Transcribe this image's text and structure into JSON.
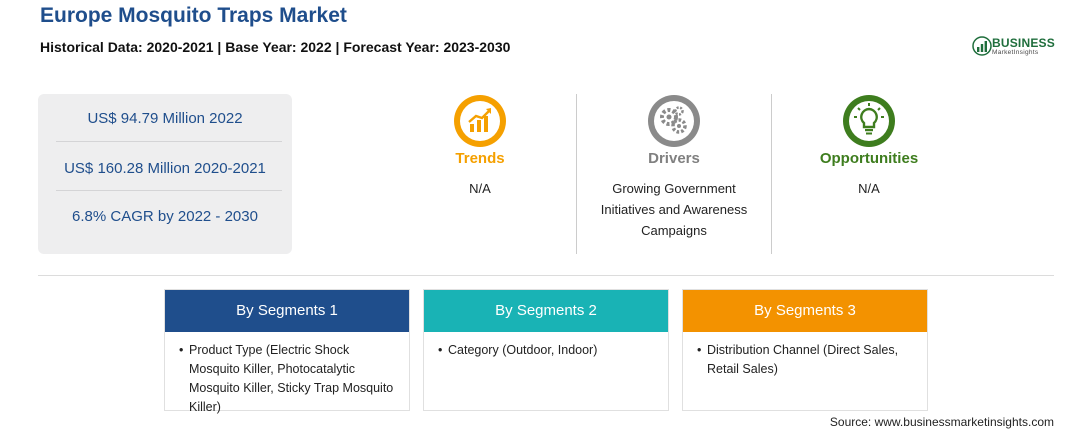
{
  "header": {
    "title": "Europe Mosquito Traps Market",
    "subtitle": "Historical Data: 2020-2021 | Base Year: 2022 | Forecast Year: 2023-2030"
  },
  "logo": {
    "name": "BUSINESS",
    "tagline": "MarketInsights",
    "icon": "bar-chart-logo-icon"
  },
  "stats": [
    "US$ 94.79 Million 2022",
    "US$ 160.28 Million 2020-2021",
    "6.8% CAGR by 2022 - 2030"
  ],
  "factors": {
    "trends": {
      "label": "Trends",
      "text": "N/A",
      "icon": "trend-chart-icon",
      "color": "#f5a000"
    },
    "drivers": {
      "label": "Drivers",
      "text": "Growing Government Initiatives and Awareness Campaigns",
      "icon": "gears-icon",
      "color": "#808080"
    },
    "opportunities": {
      "label": "Opportunities",
      "text": "N/A",
      "icon": "lightbulb-icon",
      "color": "#3e7d1e"
    }
  },
  "segments": [
    {
      "title": "By Segments 1",
      "color": "#1f4e8c",
      "bullet": "•",
      "item": "Product Type (Electric Shock Mosquito Killer, Photocatalytic Mosquito Killer, Sticky Trap Mosquito Killer)"
    },
    {
      "title": "By Segments 2",
      "color": "#19b3b5",
      "bullet": "•",
      "item": "Category (Outdoor, Indoor)"
    },
    {
      "title": "By Segments 3",
      "color": "#f39200",
      "bullet": "•",
      "item": "Distribution Channel (Direct Sales, Retail Sales)"
    }
  ],
  "source": "Source: www.businessmarketinsights.com"
}
